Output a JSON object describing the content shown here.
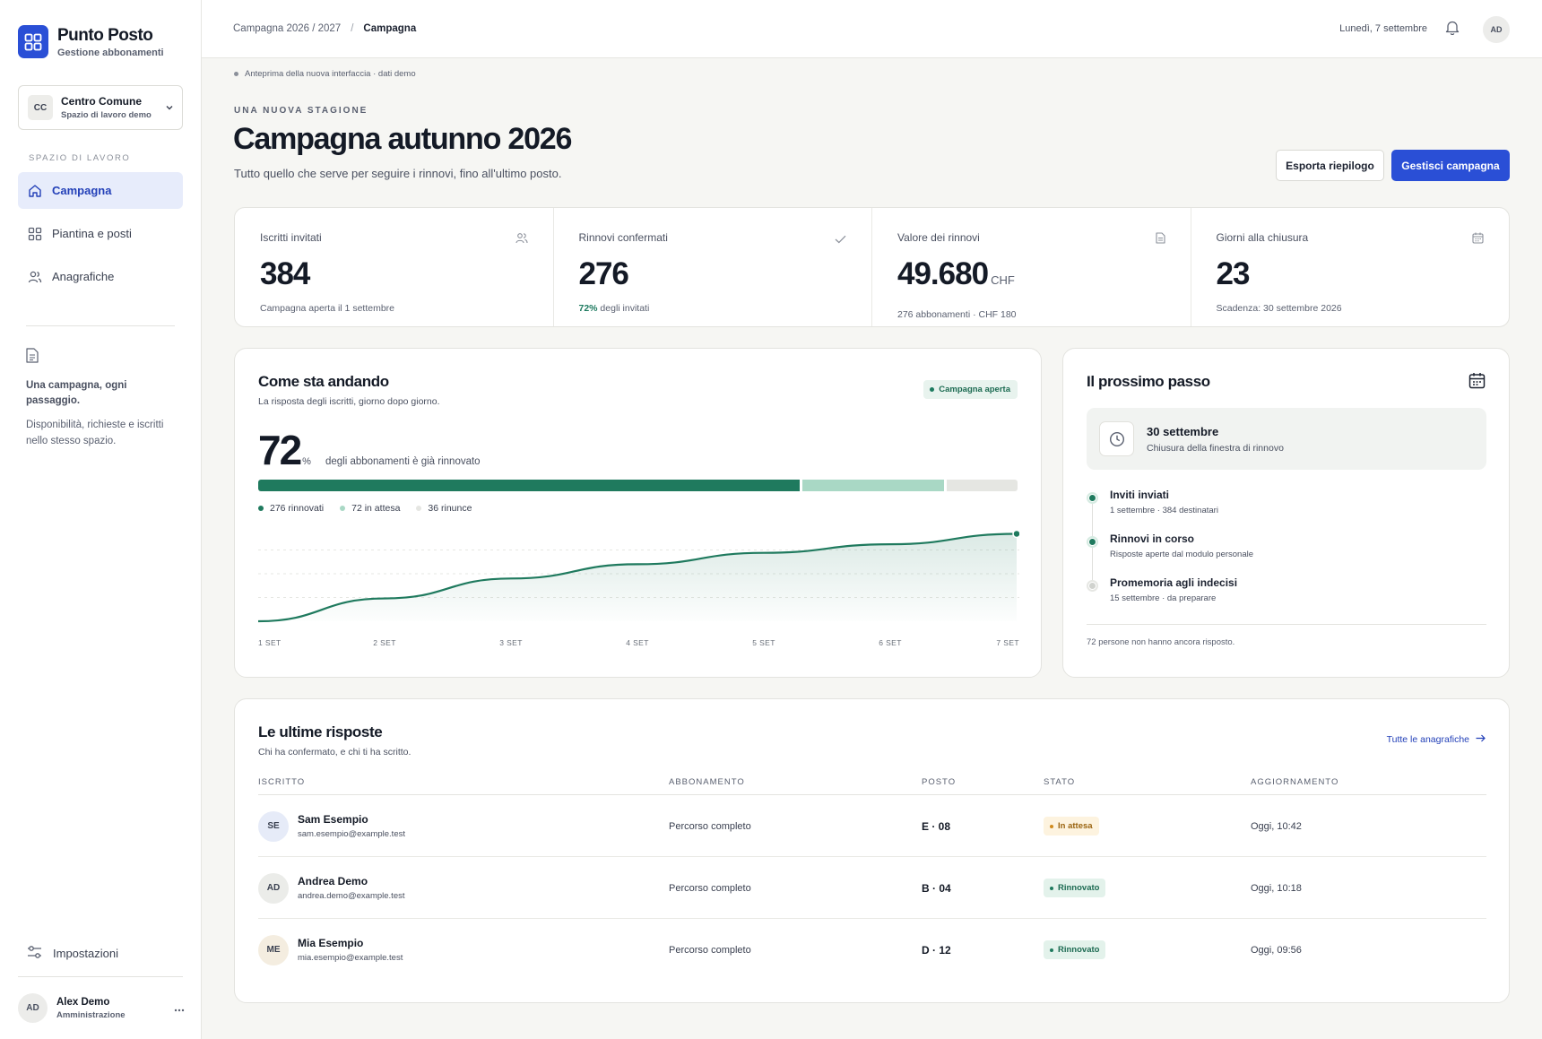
{
  "brand": {
    "name": "Punto Posto",
    "subtitle": "Gestione abbonamenti",
    "color": "#2a4fd6"
  },
  "workspace": {
    "initials": "CC",
    "name": "Centro Comune",
    "subtitle": "Spazio di lavoro demo"
  },
  "sidebar": {
    "section_label": "SPAZIO DI LAVORO",
    "items": [
      {
        "label": "Campagna",
        "icon": "home-icon",
        "active": true
      },
      {
        "label": "Piantina e posti",
        "icon": "grid-icon",
        "active": false
      },
      {
        "label": "Anagrafiche",
        "icon": "users-icon",
        "active": false
      }
    ],
    "tip": {
      "icon": "document-icon",
      "title": "Una campagna, ogni passaggio.",
      "body": "Disponibilità, richieste e iscritti nello stesso spazio."
    },
    "settings_label": "Impostazioni",
    "user": {
      "initials": "AD",
      "name": "Alex Demo",
      "role": "Amministrazione"
    }
  },
  "topbar": {
    "breadcrumb": [
      "Campagna 2026 / 2027",
      "Campagna"
    ],
    "breadcrumb_sep": "/",
    "date": "Lunedì, 7 settembre",
    "avatar_initials": "AD"
  },
  "page": {
    "preview_note": "Anteprima della nuova interfaccia · dati demo",
    "eyebrow": "UNA NUOVA STAGIONE",
    "title": "Campagna autunno 2026",
    "subtitle": "Tutto quello che serve per seguire i rinnovi, fino all'ultimo posto.",
    "export_label": "Esporta riepilogo",
    "manage_label": "Gestisci campagna"
  },
  "stats": [
    {
      "label": "Iscritti invitati",
      "icon": "users-icon",
      "value": "384",
      "unit": "",
      "note_prefix": "",
      "note": "Campagna aperta il 1 settembre"
    },
    {
      "label": "Rinnovi confermati",
      "icon": "check-icon",
      "value": "276",
      "unit": "",
      "note_prefix": "72%",
      "note": " degli invitati"
    },
    {
      "label": "Valore dei rinnovi",
      "icon": "document-icon",
      "value": "49.680",
      "unit": "CHF",
      "note_prefix": "",
      "note": "276 abbonamenti · CHF 180"
    },
    {
      "label": "Giorni alla chiusura",
      "icon": "calendar-icon",
      "value": "23",
      "unit": "",
      "note_prefix": "",
      "note": "Scadenza: 30 settembre 2026"
    }
  ],
  "progress": {
    "title": "Come sta andando",
    "subtitle": "La risposta degli iscritti, giorno dopo giorno.",
    "badge": "Campagna aperta",
    "percent": "72",
    "percent_sign": "%",
    "percent_text": "degli abbonamenti è già rinnovato",
    "breakdown": [
      {
        "label": "276 rinnovati",
        "value": 276,
        "color": "#1f7a5e"
      },
      {
        "label": "72 in attesa",
        "value": 72,
        "color": "#a9d8c5"
      },
      {
        "label": "36 rinunce",
        "value": 36,
        "color": "#e5e6e2"
      }
    ]
  },
  "chart_data": {
    "type": "area",
    "x": [
      "1 SET",
      "2 SET",
      "3 SET",
      "4 SET",
      "5 SET",
      "6 SET",
      "7 SET"
    ],
    "series": [
      {
        "values": [
          0,
          24,
          45,
          60,
          72,
          81,
          92
        ]
      }
    ],
    "ylim": [
      0,
      100
    ],
    "grid": true,
    "color": "#1f7a5e"
  },
  "next_step": {
    "title": "Il prossimo passo",
    "deadline_date": "30 settembre",
    "deadline_sub": "Chiusura della finestra di rinnovo",
    "steps": [
      {
        "title": "Inviti inviati",
        "sub": "1 settembre · 384 destinatari",
        "done": true
      },
      {
        "title": "Rinnovi in corso",
        "sub": "Risposte aperte dal modulo personale",
        "done": true
      },
      {
        "title": "Promemoria agli indecisi",
        "sub": "15 settembre · da preparare",
        "done": false
      }
    ],
    "footer": "72 persone non hanno ancora risposto."
  },
  "responses": {
    "title": "Le ultime risposte",
    "subtitle": "Chi ha confermato, e chi ti ha scritto.",
    "link": "Tutte le anagrafiche",
    "columns": [
      "ISCRITTO",
      "ABBONAMENTO",
      "POSTO",
      "STATO",
      "AGGIORNAMENTO"
    ],
    "rows": [
      {
        "initials": "SE",
        "avatar_color": "#e6ebf8",
        "name": "Sam Esempio",
        "email": "sam.esempio@example.test",
        "plan": "Percorso completo",
        "seat": "E · 08",
        "status": "In attesa",
        "status_kind": "pending",
        "updated": "Oggi, 10:42"
      },
      {
        "initials": "AD",
        "avatar_color": "#ebece9",
        "name": "Andrea Demo",
        "email": "andrea.demo@example.test",
        "plan": "Percorso completo",
        "seat": "B · 04",
        "status": "Rinnovato",
        "status_kind": "ok",
        "updated": "Oggi, 10:18"
      },
      {
        "initials": "ME",
        "avatar_color": "#f4ede0",
        "name": "Mia Esempio",
        "email": "mia.esempio@example.test",
        "plan": "Percorso completo",
        "seat": "D · 12",
        "status": "Rinnovato",
        "status_kind": "ok",
        "updated": "Oggi, 09:56"
      }
    ]
  }
}
